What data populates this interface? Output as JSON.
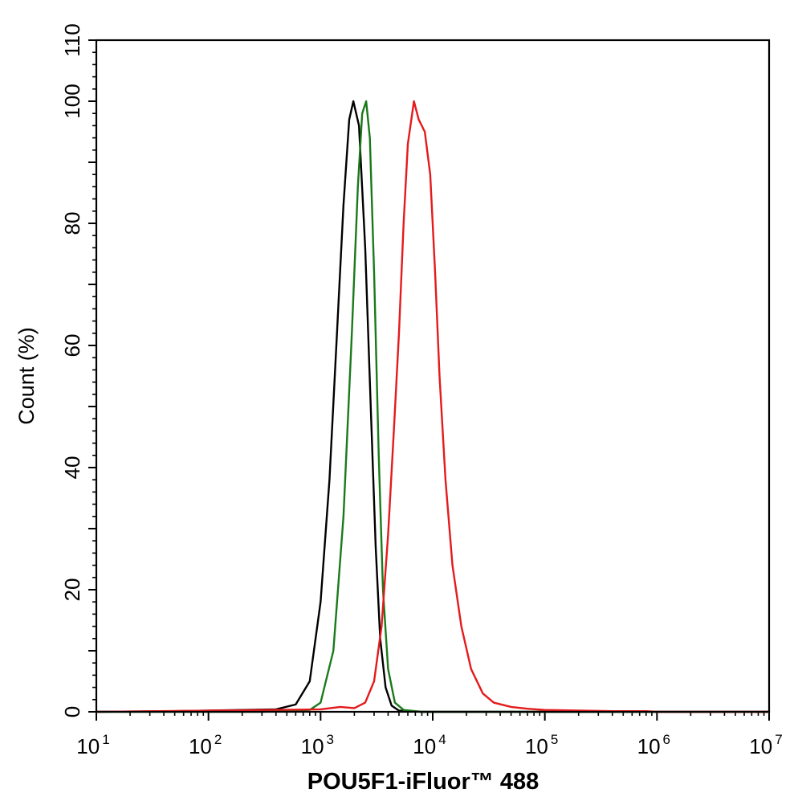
{
  "chart_data": {
    "type": "line",
    "title": "",
    "xlabel": "POU5F1-iFluor™ 488",
    "ylabel": "Count  (%)",
    "x_scale": "log10",
    "xlim": [
      10,
      10000000
    ],
    "ylim": [
      0,
      110
    ],
    "y_ticks": [
      0,
      20,
      40,
      60,
      80,
      100,
      110
    ],
    "x_ticks": [
      {
        "base": "10",
        "exp": "1",
        "value": 10
      },
      {
        "base": "10",
        "exp": "2",
        "value": 100
      },
      {
        "base": "10",
        "exp": "3",
        "value": 1000
      },
      {
        "base": "10",
        "exp": "4",
        "value": 10000
      },
      {
        "base": "10",
        "exp": "5",
        "value": 100000
      },
      {
        "base": "10",
        "exp": "6",
        "value": 1000000
      },
      {
        "base": "10",
        "exp": "7",
        "value": 10000000
      }
    ],
    "grid": false,
    "legend": "none",
    "series": [
      {
        "color": "#000000",
        "points": [
          [
            10,
            0
          ],
          [
            50,
            0.1
          ],
          [
            100,
            0.2
          ],
          [
            200,
            0.3
          ],
          [
            400,
            0.4
          ],
          [
            600,
            1.2
          ],
          [
            800,
            5
          ],
          [
            1000,
            18
          ],
          [
            1200,
            38
          ],
          [
            1400,
            62
          ],
          [
            1600,
            83
          ],
          [
            1800,
            97
          ],
          [
            1960,
            100
          ],
          [
            2200,
            96
          ],
          [
            2500,
            76
          ],
          [
            2800,
            50
          ],
          [
            3100,
            27
          ],
          [
            3400,
            12
          ],
          [
            3800,
            4
          ],
          [
            4300,
            1
          ],
          [
            5000,
            0.2
          ],
          [
            8000,
            0
          ],
          [
            10000000,
            0
          ]
        ]
      },
      {
        "color": "#1a7a1a",
        "points": [
          [
            10,
            0
          ],
          [
            300,
            0
          ],
          [
            800,
            0.3
          ],
          [
            1000,
            1.5
          ],
          [
            1300,
            10
          ],
          [
            1600,
            32
          ],
          [
            1900,
            62
          ],
          [
            2150,
            86
          ],
          [
            2350,
            98
          ],
          [
            2550,
            100
          ],
          [
            2750,
            94
          ],
          [
            3000,
            72
          ],
          [
            3300,
            42
          ],
          [
            3600,
            20
          ],
          [
            4000,
            7
          ],
          [
            4600,
            1.5
          ],
          [
            5500,
            0.3
          ],
          [
            8000,
            0
          ],
          [
            10000000,
            0
          ]
        ]
      },
      {
        "color": "#e41a1c",
        "points": [
          [
            10,
            0
          ],
          [
            1000,
            0.4
          ],
          [
            1500,
            0.8
          ],
          [
            2000,
            0.6
          ],
          [
            2500,
            1.5
          ],
          [
            3000,
            5
          ],
          [
            3500,
            14
          ],
          [
            4000,
            29
          ],
          [
            4500,
            46
          ],
          [
            5000,
            62
          ],
          [
            5500,
            80
          ],
          [
            6000,
            93
          ],
          [
            6800,
            100
          ],
          [
            7500,
            97
          ],
          [
            8500,
            95
          ],
          [
            9500,
            88
          ],
          [
            10500,
            72
          ],
          [
            11500,
            55
          ],
          [
            13000,
            38
          ],
          [
            15000,
            24
          ],
          [
            18000,
            14
          ],
          [
            22000,
            7
          ],
          [
            28000,
            3
          ],
          [
            35000,
            1.5
          ],
          [
            50000,
            0.8
          ],
          [
            70000,
            0.5
          ],
          [
            100000,
            0.3
          ],
          [
            200000,
            0.2
          ],
          [
            400000,
            0.1
          ],
          [
            800000,
            0.1
          ],
          [
            1000000,
            0
          ],
          [
            10000000,
            0
          ]
        ]
      }
    ]
  }
}
